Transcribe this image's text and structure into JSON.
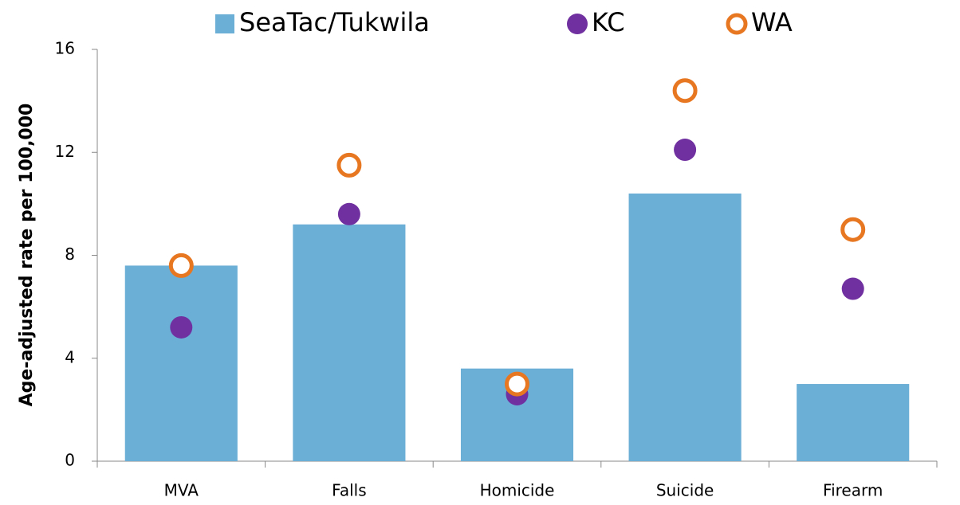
{
  "chart_data": {
    "type": "bar",
    "y_label": "Age-adjusted rate per 100,000",
    "categories": [
      "MVA",
      "Falls",
      "Homicide",
      "Suicide",
      "Firearm"
    ],
    "series": [
      {
        "name": "SeaTac/Tukwila",
        "type": "bar",
        "color": "#6baed6",
        "values": [
          7.6,
          9.2,
          3.6,
          10.4,
          3.0
        ]
      },
      {
        "name": "KC",
        "type": "scatter",
        "marker": "filled",
        "color": "#7030a0",
        "values": [
          5.2,
          9.6,
          2.6,
          12.1,
          6.7
        ]
      },
      {
        "name": "WA",
        "type": "scatter",
        "marker": "hollow",
        "color": "#e87722",
        "values": [
          7.6,
          11.5,
          3.0,
          14.4,
          9.0
        ]
      }
    ],
    "ylim": [
      0,
      16
    ],
    "yticks": [
      0,
      4,
      8,
      12,
      16
    ],
    "grid": false,
    "legend": "top"
  }
}
